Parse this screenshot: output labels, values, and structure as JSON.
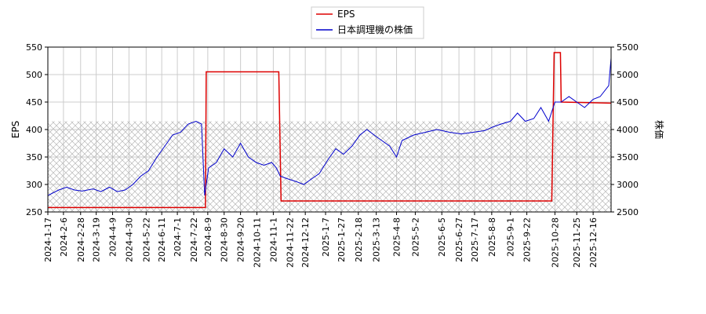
{
  "chart_data": {
    "type": "line",
    "xlabel": "",
    "ylabel_left": "EPS",
    "ylabel_right": "株価",
    "ylim_left": [
      250,
      550
    ],
    "ylim_right": [
      2500,
      5500
    ],
    "yticks_left": [
      "250",
      "300",
      "350",
      "400",
      "450",
      "500",
      "550"
    ],
    "yticks_right": [
      "2500",
      "3000",
      "3500",
      "4000",
      "4500",
      "5000",
      "5500"
    ],
    "xticks": [
      "2024-1-17",
      "2024-2-6",
      "2024-2-28",
      "2024-3-19",
      "2024-4-9",
      "2024-4-30",
      "2024-5-22",
      "2024-6-11",
      "2024-7-1",
      "2024-7-22",
      "2024-8-9",
      "2024-8-30",
      "2024-9-20",
      "2024-10-11",
      "2024-11-1",
      "2024-11-22",
      "2024-12-12",
      "2025-1-7",
      "2025-1-27",
      "2025-2-18",
      "2025-3-13",
      "2025-4-8",
      "2025-5-2",
      "2025-6-5",
      "2025-6-27",
      "2025-7-17",
      "2025-8-8",
      "2025-9-1",
      "2025-9-22",
      "2025-10-28",
      "2025-11-25",
      "2025-12-16"
    ],
    "xrange": [
      "2024-01-17",
      "2026-01-08"
    ],
    "grid": true,
    "legend_position": "top-center",
    "shaded_region_right": [
      2500,
      4150
    ],
    "series": [
      {
        "name": "EPS",
        "axis": "left",
        "color": "#dd0000",
        "x": [
          "2024-01-17",
          "2024-08-06",
          "2024-08-07",
          "2024-11-08",
          "2024-11-11",
          "2025-10-24",
          "2025-10-27",
          "2025-11-04",
          "2025-11-05",
          "2026-01-08"
        ],
        "y": [
          258,
          258,
          505,
          505,
          270,
          270,
          540,
          540,
          450,
          448
        ]
      },
      {
        "name": "日本調理機の株価",
        "axis": "right",
        "color": "#0000cc",
        "x": [
          "2024-01-17",
          "2024-01-31",
          "2024-02-10",
          "2024-02-20",
          "2024-03-01",
          "2024-03-15",
          "2024-03-25",
          "2024-04-05",
          "2024-04-15",
          "2024-04-25",
          "2024-05-05",
          "2024-05-15",
          "2024-05-25",
          "2024-06-05",
          "2024-06-15",
          "2024-06-25",
          "2024-07-05",
          "2024-07-15",
          "2024-07-25",
          "2024-08-01",
          "2024-08-05",
          "2024-08-10",
          "2024-08-20",
          "2024-08-30",
          "2024-09-10",
          "2024-09-20",
          "2024-09-30",
          "2024-10-10",
          "2024-10-20",
          "2024-10-30",
          "2024-11-05",
          "2024-11-10",
          "2024-11-20",
          "2024-12-01",
          "2024-12-10",
          "2024-12-20",
          "2024-12-30",
          "2025-01-10",
          "2025-01-20",
          "2025-01-30",
          "2025-02-10",
          "2025-02-20",
          "2025-03-01",
          "2025-03-15",
          "2025-03-30",
          "2025-04-08",
          "2025-04-15",
          "2025-04-30",
          "2025-05-15",
          "2025-05-30",
          "2025-06-15",
          "2025-06-30",
          "2025-07-15",
          "2025-07-30",
          "2025-08-10",
          "2025-08-20",
          "2025-09-01",
          "2025-09-10",
          "2025-09-20",
          "2025-10-01",
          "2025-10-10",
          "2025-10-20",
          "2025-10-28",
          "2025-11-05",
          "2025-11-15",
          "2025-11-25",
          "2025-12-05",
          "2025-12-16",
          "2025-12-25",
          "2026-01-05",
          "2026-01-08"
        ],
        "y": [
          2800,
          2900,
          2950,
          2900,
          2880,
          2920,
          2870,
          2950,
          2870,
          2900,
          3000,
          3150,
          3250,
          3500,
          3700,
          3900,
          3950,
          4100,
          4150,
          4100,
          2800,
          3300,
          3400,
          3650,
          3500,
          3750,
          3500,
          3400,
          3350,
          3400,
          3300,
          3150,
          3100,
          3050,
          3000,
          3100,
          3200,
          3450,
          3650,
          3550,
          3700,
          3900,
          4000,
          3850,
          3700,
          3500,
          3800,
          3900,
          3950,
          4000,
          3950,
          3920,
          3950,
          3980,
          4050,
          4100,
          4150,
          4300,
          4150,
          4200,
          4400,
          4150,
          4500,
          4500,
          4600,
          4500,
          4400,
          4550,
          4600,
          4800,
          5300
        ]
      }
    ]
  }
}
